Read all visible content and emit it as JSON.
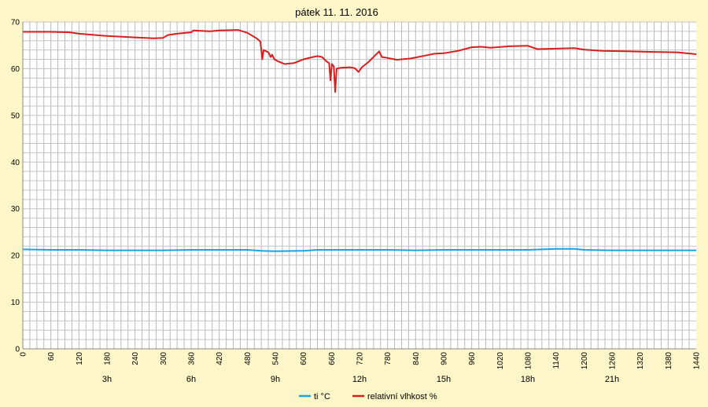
{
  "chart_data": {
    "type": "line",
    "title": "pátek 11. 11. 2016",
    "xlabel": "",
    "ylabel": "",
    "xlim": [
      0,
      1440
    ],
    "ylim": [
      0,
      70
    ],
    "grid": true,
    "legend_position": "bottom",
    "y_ticks": [
      "0",
      "10",
      "20",
      "30",
      "40",
      "50",
      "60",
      "70"
    ],
    "x_ticks": [
      "0",
      "60",
      "120",
      "180",
      "240",
      "300",
      "360",
      "420",
      "480",
      "540",
      "600",
      "660",
      "720",
      "780",
      "840",
      "900",
      "960",
      "1020",
      "1080",
      "1140",
      "1200",
      "1260",
      "1320",
      "1380",
      "1440"
    ],
    "hour_labels": [
      {
        "label": "3h",
        "x": 180
      },
      {
        "label": "6h",
        "x": 360
      },
      {
        "label": "9h",
        "x": 540
      },
      {
        "label": "12h",
        "x": 720
      },
      {
        "label": "15h",
        "x": 900
      },
      {
        "label": "18h",
        "x": 1080
      },
      {
        "label": "21h",
        "x": 1260
      }
    ],
    "series": [
      {
        "name": "ti °C",
        "color": "#1aa3e0",
        "points": [
          [
            0,
            21.3
          ],
          [
            60,
            21.2
          ],
          [
            120,
            21.2
          ],
          [
            180,
            21.1
          ],
          [
            240,
            21.1
          ],
          [
            300,
            21.1
          ],
          [
            360,
            21.2
          ],
          [
            420,
            21.2
          ],
          [
            480,
            21.2
          ],
          [
            510,
            21.0
          ],
          [
            540,
            20.9
          ],
          [
            600,
            21.0
          ],
          [
            630,
            21.2
          ],
          [
            660,
            21.2
          ],
          [
            720,
            21.2
          ],
          [
            780,
            21.2
          ],
          [
            840,
            21.1
          ],
          [
            900,
            21.2
          ],
          [
            960,
            21.2
          ],
          [
            1020,
            21.2
          ],
          [
            1080,
            21.2
          ],
          [
            1140,
            21.4
          ],
          [
            1180,
            21.4
          ],
          [
            1200,
            21.2
          ],
          [
            1260,
            21.1
          ],
          [
            1320,
            21.1
          ],
          [
            1380,
            21.1
          ],
          [
            1440,
            21.1
          ]
        ]
      },
      {
        "name": "relativní vlhkost %",
        "color": "#d81e1e",
        "points": [
          [
            0,
            67.9
          ],
          [
            60,
            67.9
          ],
          [
            100,
            67.8
          ],
          [
            120,
            67.5
          ],
          [
            180,
            67.0
          ],
          [
            240,
            66.7
          ],
          [
            280,
            66.5
          ],
          [
            300,
            66.6
          ],
          [
            310,
            67.2
          ],
          [
            330,
            67.5
          ],
          [
            360,
            67.8
          ],
          [
            365,
            68.2
          ],
          [
            400,
            68.0
          ],
          [
            420,
            68.2
          ],
          [
            460,
            68.3
          ],
          [
            480,
            67.7
          ],
          [
            500,
            66.5
          ],
          [
            508,
            65.8
          ],
          [
            512,
            62.0
          ],
          [
            515,
            64.0
          ],
          [
            525,
            63.5
          ],
          [
            530,
            62.5
          ],
          [
            533,
            63.0
          ],
          [
            538,
            62.0
          ],
          [
            545,
            61.6
          ],
          [
            560,
            61.0
          ],
          [
            580,
            61.2
          ],
          [
            600,
            62.0
          ],
          [
            620,
            62.5
          ],
          [
            630,
            62.7
          ],
          [
            640,
            62.5
          ],
          [
            650,
            61.5
          ],
          [
            655,
            61.2
          ],
          [
            658,
            57.5
          ],
          [
            661,
            61.0
          ],
          [
            665,
            60.5
          ],
          [
            668,
            55.0
          ],
          [
            671,
            60.0
          ],
          [
            680,
            60.2
          ],
          [
            700,
            60.3
          ],
          [
            710,
            60.1
          ],
          [
            718,
            59.3
          ],
          [
            725,
            60.3
          ],
          [
            740,
            61.5
          ],
          [
            755,
            63.0
          ],
          [
            762,
            63.7
          ],
          [
            768,
            62.5
          ],
          [
            775,
            62.4
          ],
          [
            800,
            61.9
          ],
          [
            830,
            62.2
          ],
          [
            860,
            62.8
          ],
          [
            880,
            63.2
          ],
          [
            900,
            63.3
          ],
          [
            930,
            63.8
          ],
          [
            960,
            64.6
          ],
          [
            980,
            64.7
          ],
          [
            1000,
            64.5
          ],
          [
            1040,
            64.8
          ],
          [
            1080,
            64.9
          ],
          [
            1100,
            64.2
          ],
          [
            1140,
            64.3
          ],
          [
            1180,
            64.4
          ],
          [
            1200,
            64.1
          ],
          [
            1240,
            63.8
          ],
          [
            1300,
            63.7
          ],
          [
            1340,
            63.6
          ],
          [
            1400,
            63.5
          ],
          [
            1440,
            63.1
          ]
        ]
      }
    ]
  }
}
